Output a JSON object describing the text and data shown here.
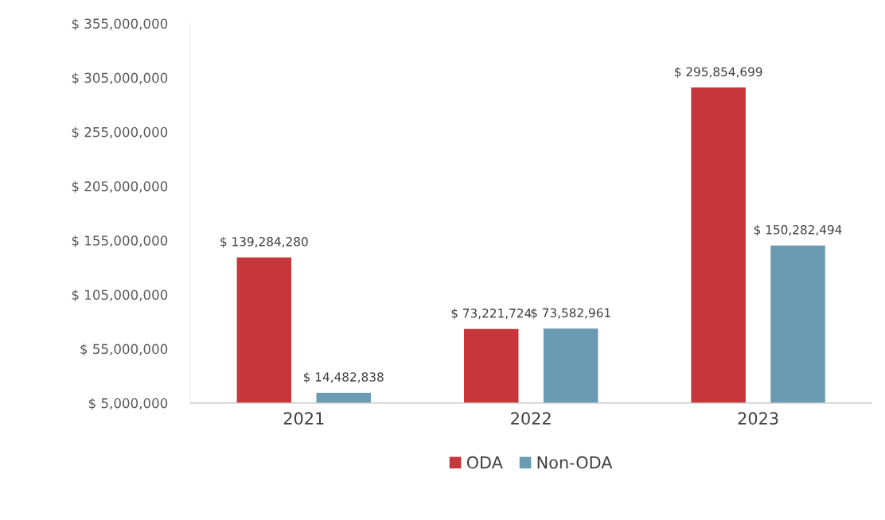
{
  "chart_data": {
    "type": "bar",
    "categories": [
      "2021",
      "2022",
      "2023"
    ],
    "series": [
      {
        "name": "ODA",
        "color": "#c6363a",
        "values": [
          139284280,
          73221724,
          295854699
        ],
        "value_labels": [
          "$ 139,284,280",
          "$ 73,221,724",
          "$ 295,854,699"
        ]
      },
      {
        "name": "Non-ODA",
        "color": "#6a9bb3",
        "values": [
          14482838,
          73582961,
          150282494
        ],
        "value_labels": [
          "$ 14,482,838",
          "$ 73,582,961",
          "$ 150,282,494"
        ]
      }
    ],
    "ylim": [
      5000000,
      355000000
    ],
    "yticks": [
      {
        "value": 5000000,
        "label": "$ 5,000,000"
      },
      {
        "value": 55000000,
        "label": "$ 55,000,000"
      },
      {
        "value": 105000000,
        "label": "$ 105,000,000"
      },
      {
        "value": 155000000,
        "label": "$ 155,000,000"
      },
      {
        "value": 205000000,
        "label": "$ 205,000,000"
      },
      {
        "value": 255000000,
        "label": "$ 255,000,000"
      },
      {
        "value": 305000000,
        "label": "$ 305,000,000"
      },
      {
        "value": 355000000,
        "label": "$ 355,000,000"
      }
    ],
    "grid": false,
    "legend": "bottom"
  }
}
